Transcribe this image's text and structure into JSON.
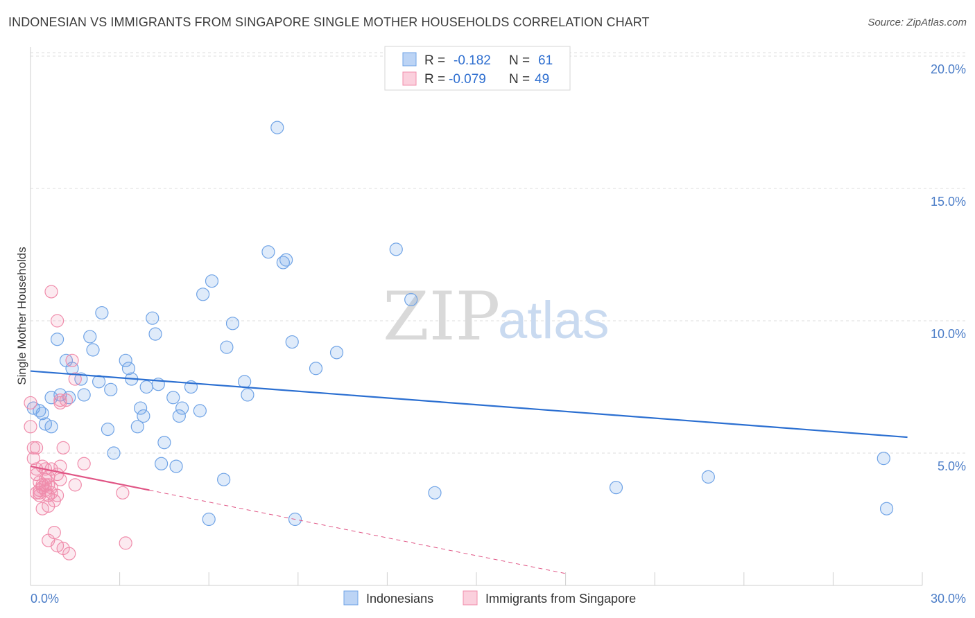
{
  "header": {
    "title": "INDONESIAN VS IMMIGRANTS FROM SINGAPORE SINGLE MOTHER HOUSEHOLDS CORRELATION CHART",
    "source": "Source: ZipAtlas.com"
  },
  "watermark": {
    "zip": "ZIP",
    "atlas": "atlas"
  },
  "chart_data": {
    "type": "scatter",
    "title": "INDONESIAN VS IMMIGRANTS FROM SINGAPORE SINGLE MOTHER HOUSEHOLDS CORRELATION CHART",
    "xlabel": "",
    "ylabel": "Single Mother Households",
    "xlim": [
      0,
      30
    ],
    "ylim": [
      0,
      20.5
    ],
    "x_tick_labels": [
      "0.0%",
      "30.0%"
    ],
    "y_ticks": [
      {
        "value": 5,
        "label": "5.0%"
      },
      {
        "value": 10,
        "label": "10.0%"
      },
      {
        "value": 15,
        "label": "15.0%"
      },
      {
        "value": 20,
        "label": "20.0%"
      }
    ],
    "grid": true,
    "legend_position": "top-center",
    "legend": [
      {
        "r_label": "R =",
        "r_value": "-0.182",
        "n_label": "N =",
        "n_value": "61"
      },
      {
        "r_label": "R =",
        "r_value": "-0.079",
        "n_label": "N =",
        "n_value": "49"
      }
    ],
    "series": [
      {
        "name": "Indonesians",
        "color": "#6fa3e6",
        "line_color": "#2b6fd1",
        "trend": {
          "x0": 0,
          "y0": 8.1,
          "x1": 29.5,
          "y1": 5.6,
          "dashed_extension": false
        },
        "points": [
          [
            0.1,
            6.7
          ],
          [
            0.3,
            6.6
          ],
          [
            0.4,
            6.5
          ],
          [
            0.5,
            6.1
          ],
          [
            0.7,
            6.0
          ],
          [
            0.7,
            7.1
          ],
          [
            0.9,
            9.3
          ],
          [
            1.0,
            7.2
          ],
          [
            1.2,
            8.5
          ],
          [
            1.3,
            7.1
          ],
          [
            1.4,
            8.2
          ],
          [
            1.7,
            7.8
          ],
          [
            1.8,
            7.2
          ],
          [
            2.0,
            9.4
          ],
          [
            2.1,
            8.9
          ],
          [
            2.3,
            7.7
          ],
          [
            2.4,
            10.3
          ],
          [
            2.6,
            5.9
          ],
          [
            2.7,
            7.4
          ],
          [
            2.8,
            5.0
          ],
          [
            3.2,
            8.5
          ],
          [
            3.3,
            8.2
          ],
          [
            3.4,
            7.8
          ],
          [
            3.6,
            6.0
          ],
          [
            3.7,
            6.7
          ],
          [
            3.8,
            6.4
          ],
          [
            3.9,
            7.5
          ],
          [
            4.1,
            10.1
          ],
          [
            4.2,
            9.5
          ],
          [
            4.3,
            7.6
          ],
          [
            4.4,
            4.6
          ],
          [
            4.5,
            5.4
          ],
          [
            4.8,
            7.1
          ],
          [
            4.9,
            4.5
          ],
          [
            5.0,
            6.4
          ],
          [
            5.1,
            6.7
          ],
          [
            5.4,
            7.5
          ],
          [
            5.7,
            6.6
          ],
          [
            5.8,
            11.0
          ],
          [
            6.0,
            2.5
          ],
          [
            6.1,
            11.5
          ],
          [
            6.5,
            4.0
          ],
          [
            6.6,
            9.0
          ],
          [
            6.8,
            9.9
          ],
          [
            7.2,
            7.7
          ],
          [
            7.3,
            7.2
          ],
          [
            8.0,
            12.6
          ],
          [
            8.3,
            17.3
          ],
          [
            8.5,
            12.2
          ],
          [
            8.6,
            12.3
          ],
          [
            8.8,
            9.2
          ],
          [
            8.9,
            2.5
          ],
          [
            9.6,
            8.2
          ],
          [
            10.3,
            8.8
          ],
          [
            12.3,
            12.7
          ],
          [
            12.8,
            10.8
          ],
          [
            13.6,
            3.5
          ],
          [
            19.7,
            3.7
          ],
          [
            22.8,
            4.1
          ],
          [
            28.7,
            4.8
          ],
          [
            28.8,
            2.9
          ]
        ]
      },
      {
        "name": "Immigrants from Singapore",
        "color": "#f08cab",
        "line_color": "#e05585",
        "trend": {
          "x0": 0,
          "y0": 4.5,
          "x1": 4,
          "y1": 3.6,
          "dashed_to_x": 18
        },
        "points": [
          [
            0.0,
            6.9
          ],
          [
            0.0,
            6.0
          ],
          [
            0.1,
            5.2
          ],
          [
            0.1,
            4.8
          ],
          [
            0.2,
            4.4
          ],
          [
            0.2,
            5.2
          ],
          [
            0.2,
            4.2
          ],
          [
            0.3,
            3.6
          ],
          [
            0.3,
            3.4
          ],
          [
            0.3,
            3.9
          ],
          [
            0.4,
            2.9
          ],
          [
            0.4,
            3.7
          ],
          [
            0.4,
            4.5
          ],
          [
            0.5,
            3.8
          ],
          [
            0.5,
            4.0
          ],
          [
            0.5,
            4.4
          ],
          [
            0.6,
            3.4
          ],
          [
            0.6,
            1.7
          ],
          [
            0.6,
            3.0
          ],
          [
            0.6,
            3.8
          ],
          [
            0.7,
            11.1
          ],
          [
            0.7,
            4.4
          ],
          [
            0.7,
            3.7
          ],
          [
            0.7,
            3.5
          ],
          [
            0.8,
            2.0
          ],
          [
            0.8,
            3.2
          ],
          [
            0.9,
            10.0
          ],
          [
            0.9,
            4.2
          ],
          [
            0.9,
            3.4
          ],
          [
            0.9,
            1.5
          ],
          [
            1.0,
            7.0
          ],
          [
            1.0,
            6.9
          ],
          [
            1.0,
            4.0
          ],
          [
            1.0,
            4.5
          ],
          [
            1.1,
            1.4
          ],
          [
            1.1,
            5.2
          ],
          [
            1.2,
            7.0
          ],
          [
            1.3,
            1.2
          ],
          [
            1.4,
            8.5
          ],
          [
            1.5,
            7.8
          ],
          [
            1.5,
            3.8
          ],
          [
            1.8,
            4.6
          ],
          [
            3.1,
            3.5
          ],
          [
            3.2,
            1.6
          ],
          [
            0.3,
            3.5
          ],
          [
            0.4,
            3.8
          ],
          [
            0.5,
            3.6
          ],
          [
            0.2,
            3.5
          ],
          [
            0.6,
            4.1
          ]
        ]
      }
    ]
  }
}
